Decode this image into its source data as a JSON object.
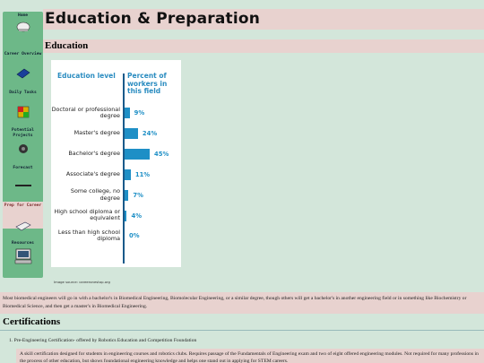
{
  "nav": {
    "items": [
      "Home",
      "Career Overview",
      "Daily Tasks",
      "Potential Projects",
      "Forecast",
      "Prep for Career",
      "Resources"
    ],
    "active": "Prep for Career"
  },
  "header": {
    "title": "Education & Preparation"
  },
  "education": {
    "heading": "Education",
    "caption": "Image source: careeronestop.org",
    "paragraph": "Most biomedical engineers will go in with a bachelor's in Biomedical Engineering, Biomolecular Engineering, or a similar degree, though others will get a bachelor's in another engineering field or in something like Biochemistry or Biomedical Science, and then get a master's in Biomedical Engineering."
  },
  "chart_data": {
    "type": "bar",
    "orientation": "horizontal",
    "category_header": "Education level",
    "value_header": "Percent of workers in this field",
    "categories": [
      "Doctoral or professional degree",
      "Master's degree",
      "Bachelor's degree",
      "Associate's degree",
      "Some college, no degree",
      "High school diploma or equivalent",
      "Less than high school diploma"
    ],
    "values": [
      9,
      24,
      45,
      11,
      7,
      4,
      0
    ],
    "value_labels": [
      "9%",
      "24%",
      "45%",
      "11%",
      "7%",
      "4%",
      "0%"
    ],
    "color": "#1e8fc6"
  },
  "certifications": {
    "heading": "Certifications",
    "items": [
      {
        "title": "1. Pre-Engineering Certification- offered by Robotics Education and Competition Foundation",
        "description": "A skill certification designed for students in engineering courses and robotics clubs. Requires passage of the Fundamentals of Engineering exam and two of eight offered engineering modules. Not required for many professions in the process of other education, but shows foundational engineering knowledge and helps one stand out in applying for STEM careers."
      }
    ]
  }
}
